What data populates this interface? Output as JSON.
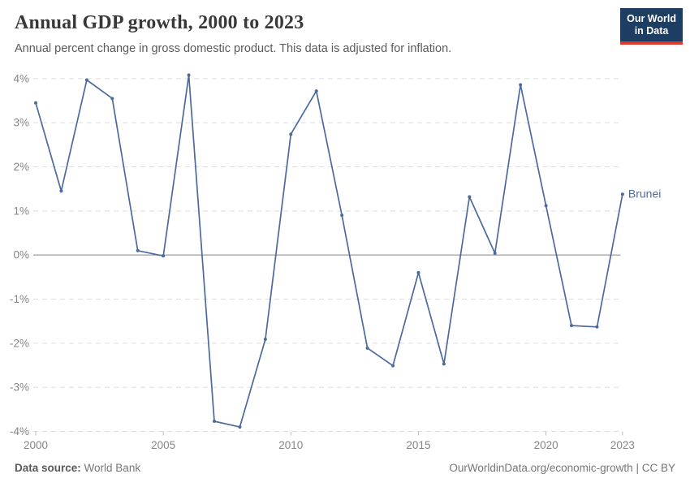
{
  "header": {
    "title": "Annual GDP growth, 2000 to 2023",
    "subtitle": "Annual percent change in gross domestic product. This data is adjusted for inflation."
  },
  "logo": {
    "line1": "Our World",
    "line2": "in Data"
  },
  "chart_data": {
    "type": "line",
    "title": "Annual GDP growth, 2000 to 2023",
    "entity_label": "Brunei",
    "x_ticks": [
      2000,
      2005,
      2010,
      2015,
      2020,
      2023
    ],
    "y_ticks": [
      4,
      3,
      2,
      1,
      0,
      -1,
      -2,
      -3,
      -4
    ],
    "y_tick_suffix": "%",
    "xlim": [
      2000,
      2023
    ],
    "ylim": [
      -4.2,
      4.2
    ],
    "grid": "horizontal-dashed, solid zero line",
    "legend_position": "end-of-line label",
    "series": [
      {
        "name": "Brunei",
        "color": "#4c6a9c",
        "x": [
          2000,
          2001,
          2002,
          2003,
          2004,
          2005,
          2006,
          2007,
          2008,
          2009,
          2010,
          2011,
          2012,
          2013,
          2014,
          2015,
          2016,
          2017,
          2018,
          2019,
          2020,
          2021,
          2022,
          2023
        ],
        "values": [
          3.45,
          1.45,
          3.97,
          3.55,
          0.1,
          -0.02,
          4.08,
          -3.77,
          -3.9,
          -1.91,
          2.74,
          3.72,
          0.9,
          -2.11,
          -2.51,
          -0.4,
          -2.47,
          1.32,
          0.04,
          3.86,
          1.12,
          -1.6,
          -1.63,
          1.38
        ]
      }
    ]
  },
  "footer": {
    "source_label": "Data source:",
    "source_value": "World Bank",
    "link": "OurWorldinData.org/economic-growth",
    "separator": "|",
    "license": "CC BY"
  },
  "colors": {
    "line": "#4c6a9c",
    "grid": "#dddddd",
    "zero_line": "#a6a6a6",
    "axis_text": "#868686",
    "tick_mark": "#bbbbbb",
    "logo_bg": "#1d3d63",
    "logo_stripe": "#dc3a2c"
  }
}
